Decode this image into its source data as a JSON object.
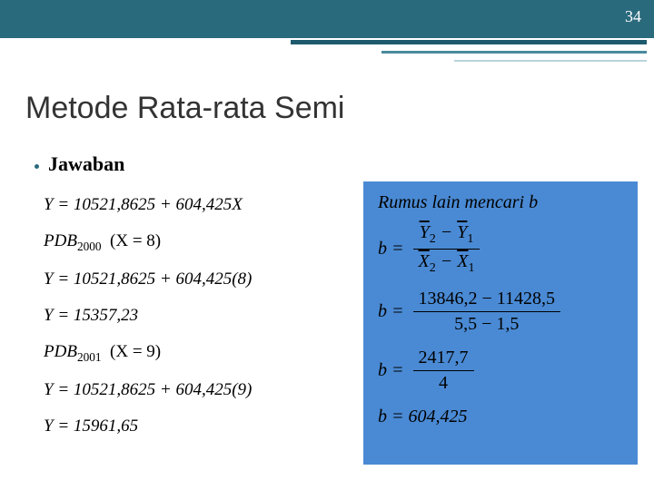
{
  "page_number": "34",
  "title": "Metode Rata-rata Semi",
  "bullet": "Jawaban",
  "left": {
    "eq1": "Y = 10521,8625 + 604,425X",
    "pdb2000_label": "PDB",
    "pdb2000_sub": "2000",
    "pdb2000_x": "(X = 8)",
    "eq2": "Y = 10521,8625 + 604,425(8)",
    "eq3": "Y = 15357,23",
    "pdb2001_label": "PDB",
    "pdb2001_sub": "2001",
    "pdb2001_x": "(X = 9)",
    "eq4": "Y = 10521,8625 + 604,425(9)",
    "eq5": "Y = 15961,65"
  },
  "right": {
    "heading": "Rumus lain mencari b",
    "f1_num_l": "Y",
    "f1_num_l_sub": "2",
    "f1_num_r": "Y",
    "f1_num_r_sub": "1",
    "f1_den_l": "X",
    "f1_den_l_sub": "2",
    "f1_den_r": "X",
    "f1_den_r_sub": "1",
    "f2_num": "13846,2 − 11428,5",
    "f2_den": "5,5 − 1,5",
    "f3_num": "2417,7",
    "f3_den": "4",
    "result": "b = 604,425"
  },
  "colors": {
    "header": "#2a6a7d",
    "box": "#4a8ad4",
    "text": "#000000"
  }
}
